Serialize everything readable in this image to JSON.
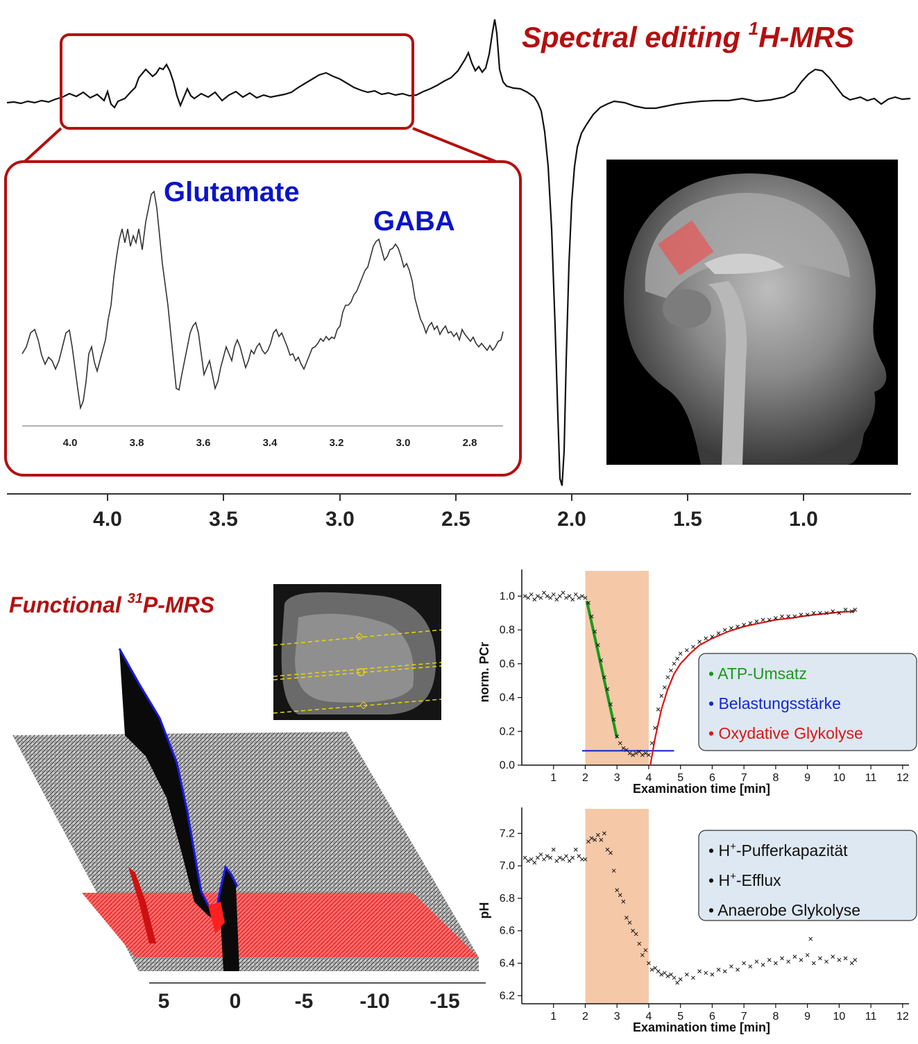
{
  "top": {
    "title_main": "Spectral editing ",
    "title_sup": "1",
    "title_tail": "H-MRS",
    "x_ticks": [
      "4.0",
      "3.5",
      "3.0",
      "2.5",
      "2.0",
      "1.5",
      "1.0"
    ],
    "inset_label_1": "Glutamate",
    "inset_label_2": "GABA",
    "inset_ticks": [
      "4.0",
      "3.8",
      "3.6",
      "3.4",
      "3.2",
      "3.0",
      "2.8"
    ]
  },
  "bottom_left": {
    "title_main": "Functional ",
    "title_sup": "31",
    "title_tail": "P-MRS",
    "x_ticks": [
      "5",
      "0",
      "-5",
      "-10",
      "-15"
    ]
  },
  "chart_data": [
    {
      "type": "scatter",
      "name": "pcr-chart",
      "xlabel": "Examination time [min]",
      "ylabel": "norm. PCr",
      "xlim": [
        0,
        12.2
      ],
      "ylim": [
        0,
        1.1
      ],
      "x_ticks": [
        1,
        2,
        3,
        4,
        5,
        6,
        7,
        8,
        9,
        10,
        11,
        12
      ],
      "y_ticks": [
        "0.0",
        "0.2",
        "0.4",
        "0.6",
        "0.8",
        "1.0"
      ],
      "shaded_interval": [
        2,
        4
      ],
      "shaded_color": "#f5c8a8",
      "points": [
        [
          0.1,
          1.0
        ],
        [
          0.2,
          0.99
        ],
        [
          0.3,
          1.01
        ],
        [
          0.4,
          0.98
        ],
        [
          0.5,
          1.0
        ],
        [
          0.6,
          0.99
        ],
        [
          0.7,
          1.02
        ],
        [
          0.8,
          1.0
        ],
        [
          0.9,
          0.99
        ],
        [
          1.0,
          1.01
        ],
        [
          1.1,
          0.98
        ],
        [
          1.2,
          1.0
        ],
        [
          1.3,
          1.02
        ],
        [
          1.4,
          0.99
        ],
        [
          1.5,
          1.0
        ],
        [
          1.6,
          0.98
        ],
        [
          1.7,
          1.01
        ],
        [
          1.8,
          0.99
        ],
        [
          1.9,
          1.0
        ],
        [
          2.0,
          0.99
        ],
        [
          2.1,
          0.96
        ],
        [
          2.2,
          0.88
        ],
        [
          2.3,
          0.79
        ],
        [
          2.4,
          0.71
        ],
        [
          2.5,
          0.62
        ],
        [
          2.6,
          0.52
        ],
        [
          2.7,
          0.45
        ],
        [
          2.8,
          0.36
        ],
        [
          2.9,
          0.27
        ],
        [
          3.0,
          0.17
        ],
        [
          3.1,
          0.13
        ],
        [
          3.2,
          0.1
        ],
        [
          3.3,
          0.09
        ],
        [
          3.4,
          0.07
        ],
        [
          3.5,
          0.06
        ],
        [
          3.6,
          0.07
        ],
        [
          3.7,
          0.08
        ],
        [
          3.8,
          0.06
        ],
        [
          3.9,
          0.07
        ],
        [
          4.0,
          0.06
        ],
        [
          4.1,
          0.13
        ],
        [
          4.2,
          0.22
        ],
        [
          4.3,
          0.33
        ],
        [
          4.4,
          0.41
        ],
        [
          4.5,
          0.46
        ],
        [
          4.6,
          0.52
        ],
        [
          4.7,
          0.56
        ],
        [
          4.8,
          0.6
        ],
        [
          4.9,
          0.63
        ],
        [
          5.0,
          0.66
        ],
        [
          5.2,
          0.68
        ],
        [
          5.4,
          0.7
        ],
        [
          5.6,
          0.73
        ],
        [
          5.8,
          0.75
        ],
        [
          6.0,
          0.76
        ],
        [
          6.2,
          0.78
        ],
        [
          6.4,
          0.8
        ],
        [
          6.6,
          0.81
        ],
        [
          6.8,
          0.82
        ],
        [
          7.0,
          0.83
        ],
        [
          7.2,
          0.84
        ],
        [
          7.4,
          0.85
        ],
        [
          7.6,
          0.86
        ],
        [
          7.8,
          0.86
        ],
        [
          8.0,
          0.87
        ],
        [
          8.2,
          0.88
        ],
        [
          8.4,
          0.88
        ],
        [
          8.6,
          0.88
        ],
        [
          8.8,
          0.89
        ],
        [
          9.0,
          0.89
        ],
        [
          9.2,
          0.9
        ],
        [
          9.4,
          0.9
        ],
        [
          9.6,
          0.9
        ],
        [
          9.8,
          0.91
        ],
        [
          10.0,
          0.9
        ],
        [
          10.2,
          0.92
        ],
        [
          10.4,
          0.91
        ],
        [
          10.5,
          0.92
        ]
      ],
      "fit_lines": [
        {
          "color": "#1a9a1a",
          "points": [
            [
              2.05,
              0.97
            ],
            [
              3.0,
              0.16
            ]
          ]
        },
        {
          "color": "#1428d2",
          "points": [
            [
              1.9,
              0.085
            ],
            [
              4.8,
              0.085
            ]
          ]
        },
        {
          "color": "#e01414",
          "points": [
            [
              4.05,
              0.0
            ],
            [
              4.2,
              0.16
            ],
            [
              4.4,
              0.33
            ],
            [
              4.6,
              0.45
            ],
            [
              4.8,
              0.54
            ],
            [
              5.0,
              0.6
            ],
            [
              5.3,
              0.66
            ],
            [
              5.6,
              0.71
            ],
            [
              6.0,
              0.75
            ],
            [
              6.5,
              0.79
            ],
            [
              7.0,
              0.82
            ],
            [
              7.5,
              0.84
            ],
            [
              8.0,
              0.86
            ],
            [
              8.5,
              0.87
            ],
            [
              9.0,
              0.885
            ],
            [
              9.5,
              0.895
            ],
            [
              10.0,
              0.905
            ],
            [
              10.5,
              0.91
            ]
          ]
        }
      ],
      "legend": [
        {
          "bullet": "•",
          "label": "ATP-Umsatz",
          "color": "#1a9a1a"
        },
        {
          "bullet": "•",
          "label": "Belastungsstärke",
          "color": "#1428d2"
        },
        {
          "bullet": "•",
          "label": "Oxydative Glykolyse",
          "color": "#e01414"
        }
      ],
      "legend_bg": "#dde8f2"
    },
    {
      "type": "scatter",
      "name": "ph-chart",
      "xlabel": "Examination time [min]",
      "ylabel": "pH",
      "xlim": [
        0,
        12.2
      ],
      "ylim": [
        6.15,
        7.3
      ],
      "x_ticks": [
        1,
        2,
        3,
        4,
        5,
        6,
        7,
        8,
        9,
        10,
        11,
        12
      ],
      "y_ticks": [
        "6.2",
        "6.4",
        "6.6",
        "6.8",
        "7.0",
        "7.2"
      ],
      "shaded_interval": [
        2,
        4
      ],
      "shaded_color": "#f5c8a8",
      "points": [
        [
          0.1,
          7.05
        ],
        [
          0.2,
          7.03
        ],
        [
          0.3,
          7.04
        ],
        [
          0.4,
          7.02
        ],
        [
          0.5,
          7.05
        ],
        [
          0.6,
          7.07
        ],
        [
          0.7,
          7.04
        ],
        [
          0.8,
          7.06
        ],
        [
          0.9,
          7.05
        ],
        [
          1.0,
          7.1
        ],
        [
          1.1,
          7.03
        ],
        [
          1.2,
          7.05
        ],
        [
          1.3,
          7.04
        ],
        [
          1.4,
          7.06
        ],
        [
          1.5,
          7.03
        ],
        [
          1.6,
          7.05
        ],
        [
          1.7,
          7.1
        ],
        [
          1.8,
          7.06
        ],
        [
          1.9,
          7.04
        ],
        [
          2.0,
          7.04
        ],
        [
          2.1,
          7.15
        ],
        [
          2.2,
          7.17
        ],
        [
          2.3,
          7.16
        ],
        [
          2.4,
          7.19
        ],
        [
          2.5,
          7.16
        ],
        [
          2.6,
          7.2
        ],
        [
          2.7,
          7.1
        ],
        [
          2.8,
          7.08
        ],
        [
          2.9,
          6.97
        ],
        [
          3.0,
          6.85
        ],
        [
          3.1,
          6.82
        ],
        [
          3.2,
          6.78
        ],
        [
          3.3,
          6.68
        ],
        [
          3.4,
          6.65
        ],
        [
          3.5,
          6.6
        ],
        [
          3.6,
          6.58
        ],
        [
          3.7,
          6.52
        ],
        [
          3.8,
          6.45
        ],
        [
          3.9,
          6.48
        ],
        [
          4.0,
          6.4
        ],
        [
          4.1,
          6.36
        ],
        [
          4.2,
          6.37
        ],
        [
          4.3,
          6.35
        ],
        [
          4.4,
          6.33
        ],
        [
          4.5,
          6.34
        ],
        [
          4.6,
          6.32
        ],
        [
          4.7,
          6.33
        ],
        [
          4.8,
          6.31
        ],
        [
          4.9,
          6.28
        ],
        [
          5.0,
          6.3
        ],
        [
          5.2,
          6.33
        ],
        [
          5.4,
          6.31
        ],
        [
          5.6,
          6.35
        ],
        [
          5.8,
          6.34
        ],
        [
          6.0,
          6.33
        ],
        [
          6.2,
          6.36
        ],
        [
          6.4,
          6.35
        ],
        [
          6.6,
          6.38
        ],
        [
          6.8,
          6.36
        ],
        [
          7.0,
          6.4
        ],
        [
          7.2,
          6.38
        ],
        [
          7.4,
          6.41
        ],
        [
          7.6,
          6.39
        ],
        [
          7.8,
          6.42
        ],
        [
          8.0,
          6.4
        ],
        [
          8.2,
          6.43
        ],
        [
          8.4,
          6.41
        ],
        [
          8.6,
          6.44
        ],
        [
          8.8,
          6.42
        ],
        [
          9.0,
          6.45
        ],
        [
          9.1,
          6.55
        ],
        [
          9.2,
          6.4
        ],
        [
          9.4,
          6.43
        ],
        [
          9.6,
          6.41
        ],
        [
          9.8,
          6.44
        ],
        [
          10.0,
          6.42
        ],
        [
          10.2,
          6.43
        ],
        [
          10.4,
          6.4
        ],
        [
          10.5,
          6.42
        ]
      ],
      "legend": [
        {
          "bullet": "•",
          "label_pre": "H",
          "label_sup": "+",
          "label_post": "-Pufferkapazität",
          "color": "#111111"
        },
        {
          "bullet": "•",
          "label_pre": "H",
          "label_sup": "+",
          "label_post": "-Efflux",
          "color": "#111111"
        },
        {
          "bullet": "•",
          "label_pre": "Anaerobe Glykolyse",
          "label_sup": "",
          "label_post": "",
          "color": "#111111"
        }
      ],
      "legend_bg": "#dde8f2"
    }
  ],
  "colors": {
    "accent_red": "#b40f0f",
    "label_blue": "#0a14c8",
    "spectrum_red": "#ff2a2a",
    "spectrum_blue": "#1a1ae6"
  }
}
